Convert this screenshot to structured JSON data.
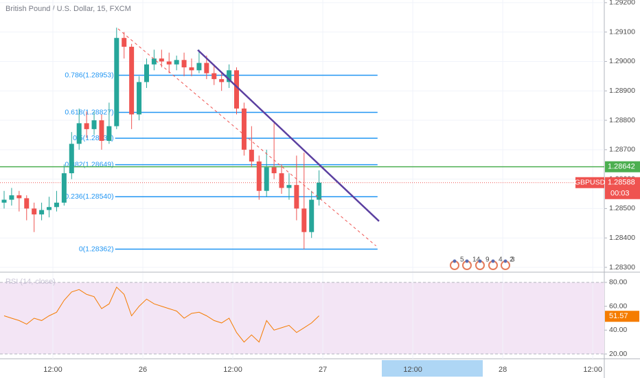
{
  "chart_data": {
    "type": "candlestick",
    "title": "British Pound / U.S. Dollar, 15, FXCM",
    "x": [
      5.5,
      6.5,
      7.5,
      8.5,
      9.5,
      10.5,
      11.5,
      12.5,
      13.5,
      14.5,
      15.5,
      16.5,
      17.5,
      18.5,
      19.5,
      20.5,
      21.5,
      22.5,
      23.5,
      24.5,
      25.5,
      26.5,
      27.5,
      28.5,
      29.5,
      30.5,
      31.5,
      32.5,
      33.5,
      34.5,
      35.5,
      36.5,
      37.5,
      38.5,
      39.5,
      40.5,
      41.5,
      42.5,
      43.5,
      44.5,
      45.5,
      46.5,
      47.5
    ],
    "open": [
      1.2852,
      1.2853,
      1.28545,
      1.28535,
      1.285,
      1.2848,
      1.28495,
      1.28505,
      1.2852,
      1.2862,
      1.2872,
      1.2879,
      1.2877,
      1.288,
      1.2873,
      1.2878,
      1.2908,
      1.2905,
      1.2882,
      1.2893,
      1.2899,
      1.2901,
      1.29,
      1.2899,
      1.29005,
      1.2898,
      1.2897,
      1.28995,
      1.2896,
      1.2894,
      1.2893,
      1.2897,
      1.2884,
      1.287,
      1.2866,
      1.2856,
      1.2864,
      1.2862,
      1.2857,
      1.2858,
      1.285,
      1.2842,
      1.2853
    ],
    "high": [
      1.2856,
      1.2857,
      1.2856,
      1.28545,
      1.2852,
      1.2852,
      1.2854,
      1.2856,
      1.2865,
      1.2876,
      1.2884,
      1.2883,
      1.2883,
      1.2882,
      1.2886,
      1.29115,
      1.291,
      1.2906,
      1.2895,
      1.2901,
      1.2904,
      1.2904,
      1.2903,
      1.2902,
      1.2903,
      1.2901,
      1.2904,
      1.2902,
      1.2899,
      1.2896,
      1.2899,
      1.2898,
      1.2886,
      1.2878,
      1.2868,
      1.287,
      1.2879,
      1.2865,
      1.2862,
      1.2868,
      1.2869,
      1.2856,
      1.2863
    ],
    "low": [
      1.285,
      1.2851,
      1.2849,
      1.2846,
      1.2842,
      1.2846,
      1.2847,
      1.2849,
      1.2851,
      1.286,
      1.287,
      1.2874,
      1.2875,
      1.287,
      1.2872,
      1.2877,
      1.2901,
      1.2877,
      1.288,
      1.2891,
      1.2897,
      1.2898,
      1.2896,
      1.2897,
      1.2895,
      1.2895,
      1.2896,
      1.2894,
      1.2892,
      1.289,
      1.2891,
      1.2882,
      1.2868,
      1.2864,
      1.2853,
      1.2854,
      1.286,
      1.2855,
      1.2853,
      1.2846,
      1.28362,
      1.284,
      1.2851
    ],
    "close": [
      1.2853,
      1.28545,
      1.28535,
      1.285,
      1.2848,
      1.28495,
      1.28505,
      1.2852,
      1.2862,
      1.2872,
      1.2879,
      1.2877,
      1.288,
      1.2873,
      1.2878,
      1.2908,
      1.2905,
      1.2882,
      1.2893,
      1.2899,
      1.2901,
      1.29,
      1.2899,
      1.29005,
      1.2898,
      1.2897,
      1.28995,
      1.2896,
      1.2894,
      1.2893,
      1.2897,
      1.2884,
      1.287,
      1.2866,
      1.2856,
      1.2864,
      1.2862,
      1.2857,
      1.2858,
      1.285,
      1.2842,
      1.2853,
      1.28588
    ],
    "up_color": "#26a69a",
    "down_color": "#ef5350",
    "xlim": [
      4.95,
      85.54
    ],
    "xticks": [
      {
        "value": 12,
        "label": "12:00"
      },
      {
        "value": 24,
        "label": "26"
      },
      {
        "value": 36,
        "label": "12:00"
      },
      {
        "value": 48,
        "label": "27"
      },
      {
        "value": 60,
        "label": "12:00"
      },
      {
        "value": 72,
        "label": "28"
      },
      {
        "value": 84,
        "label": "12:00"
      }
    ],
    "ylim": [
      1.28286,
      1.29209
    ],
    "yticks": [
      {
        "value": 1.292,
        "label": "1.29200"
      },
      {
        "value": 1.291,
        "label": "1.29100"
      },
      {
        "value": 1.29,
        "label": "1.29000"
      },
      {
        "value": 1.289,
        "label": "1.28900"
      },
      {
        "value": 1.288,
        "label": "1.28800"
      },
      {
        "value": 1.287,
        "label": "1.28700"
      },
      {
        "value": 1.286,
        "label": "1.28600"
      },
      {
        "value": 1.285,
        "label": "1.28500"
      },
      {
        "value": 1.284,
        "label": "1.28400"
      },
      {
        "value": 1.283,
        "label": "1.28300"
      }
    ],
    "grid": true,
    "fib_color": "#2196f3",
    "fib_x": [
      20.3,
      55.3
    ],
    "fib_levels": [
      {
        "label": "0.786(1.28953)",
        "value": 1.28953
      },
      {
        "label": "0.618(1.28827)",
        "value": 1.28827
      },
      {
        "label": "0.5(1.28739)",
        "value": 1.28739
      },
      {
        "label": "0.382(1.28649)",
        "value": 1.28649
      },
      {
        "label": "0.236(1.28540)",
        "value": 1.2854
      },
      {
        "label": "0(1.28362)",
        "value": 1.28362
      }
    ],
    "trendlines": [
      {
        "color": "#5b3fa0",
        "dashed": false,
        "x": [
          31.33,
          55.5
        ],
        "y": [
          1.29039,
          1.28457
        ]
      },
      {
        "color": "#ef5350",
        "dashed": true,
        "x": [
          20.7,
          55.1
        ],
        "y": [
          1.29111,
          1.28373
        ]
      }
    ],
    "alert_line": {
      "value": 1.28642,
      "color": "#4caf50"
    },
    "last_price": {
      "symbol": "GBPUSD",
      "value": 1.28588,
      "countdown": "00:03",
      "color": "#ef5350"
    },
    "events": [
      "5",
      "14",
      "9",
      "4",
      "3",
      "2"
    ],
    "rsi": {
      "label": "RSI (14, close)",
      "color": "#f57c00",
      "values": [
        52,
        50,
        48,
        45,
        50,
        48,
        52,
        55,
        65,
        72,
        74,
        70,
        68,
        58,
        62,
        76,
        70,
        52,
        60,
        66,
        62,
        60,
        58,
        56,
        50,
        54,
        55,
        52,
        48,
        46,
        50,
        38,
        30,
        36,
        30,
        48,
        40,
        42,
        44,
        38,
        42,
        46,
        52
      ],
      "last": 51.57,
      "ylim": [
        16,
        88
      ],
      "yticks": [
        {
          "value": 80,
          "label": "80.00"
        },
        {
          "value": 60,
          "label": "60.00"
        },
        {
          "value": 40,
          "label": "40.00"
        },
        {
          "value": 20,
          "label": "20.00"
        }
      ]
    }
  }
}
